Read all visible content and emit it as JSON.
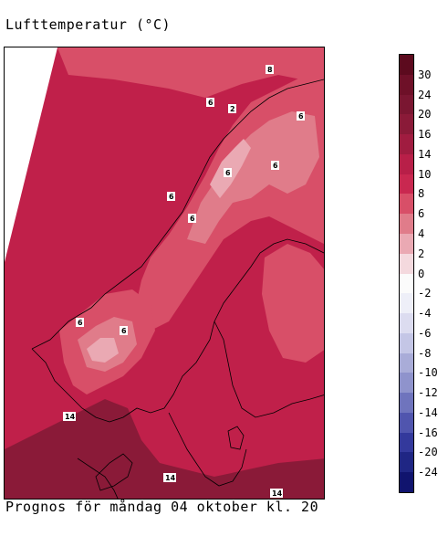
{
  "title": "Lufttemperatur (°C)",
  "footer": "Prognos för måndag 04 oktober kl. 20",
  "legend": {
    "labels": [
      "30",
      "24",
      "20",
      "16",
      "14",
      "10",
      "8",
      "6",
      "4",
      "2",
      "0",
      "-2",
      "-4",
      "-6",
      "-8",
      "-10",
      "-12",
      "-14",
      "-16",
      "-20",
      "-24"
    ],
    "colors": [
      "#5c0a1e",
      "#6e1028",
      "#7a1631",
      "#8a1a38",
      "#a01c40",
      "#b81f48",
      "#c92850",
      "#d84f68",
      "#e07c8a",
      "#eaa9b3",
      "#f4d9de",
      "#fbfbfb",
      "#eeeff8",
      "#dcdcf0",
      "#c4c6e6",
      "#a9acd8",
      "#8f93cc",
      "#6f74bd",
      "#5055ae",
      "#33399c",
      "#1f2684",
      "#10146e"
    ]
  },
  "map_labels": [
    {
      "text": "8",
      "name": "label-8-north"
    },
    {
      "text": "6",
      "name": "label-6-lofoten"
    },
    {
      "text": "2",
      "name": "label-2-lofoten"
    },
    {
      "text": "6",
      "name": "label-6-finnmark"
    },
    {
      "text": "6",
      "name": "label-6-lapland"
    },
    {
      "text": "6",
      "name": "label-6-norrbotten"
    },
    {
      "text": "6",
      "name": "label-6-helgeland"
    },
    {
      "text": "6",
      "name": "label-6-jamtland"
    },
    {
      "text": "6",
      "name": "label-6-fjords"
    },
    {
      "text": "6",
      "name": "label-6-dovre"
    },
    {
      "text": "14",
      "name": "label-14-skagerrak"
    },
    {
      "text": "14",
      "name": "label-14-denmark"
    },
    {
      "text": "14",
      "name": "label-14-baltic"
    }
  ]
}
